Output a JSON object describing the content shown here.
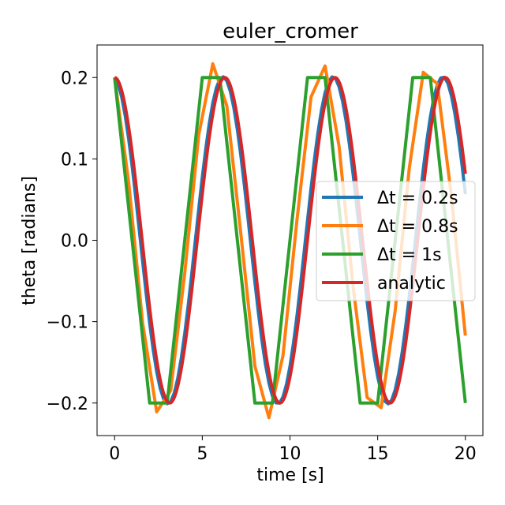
{
  "chart_data": {
    "type": "line",
    "title": "euler_cromer",
    "xlabel": "time [s]",
    "ylabel": "theta [radians]",
    "xlim": [
      -1,
      21
    ],
    "ylim": [
      -0.24,
      0.24
    ],
    "xticks": [
      0,
      5,
      10,
      15,
      20
    ],
    "yticks": [
      -0.2,
      -0.1,
      0.0,
      0.1,
      0.2
    ],
    "ytick_labels": [
      "−0.2",
      "−0.1",
      "0.0",
      "0.1",
      "0.2"
    ],
    "grid": false,
    "legend_position": "center-right",
    "amplitude": 0.2,
    "t_end": 20,
    "series": [
      {
        "name": "Δt = 0.2s",
        "color": "#1f77b4",
        "dt": 0.2,
        "method": "euler_cromer"
      },
      {
        "name": "Δt = 0.8s",
        "color": "#ff7f0e",
        "dt": 0.8,
        "method": "euler_cromer"
      },
      {
        "name": "Δt = 1s",
        "color": "#2ca02c",
        "dt": 1.0,
        "method": "euler_cromer"
      },
      {
        "name": "analytic",
        "color": "#d62728",
        "dt": 0.05,
        "method": "analytic"
      }
    ]
  }
}
